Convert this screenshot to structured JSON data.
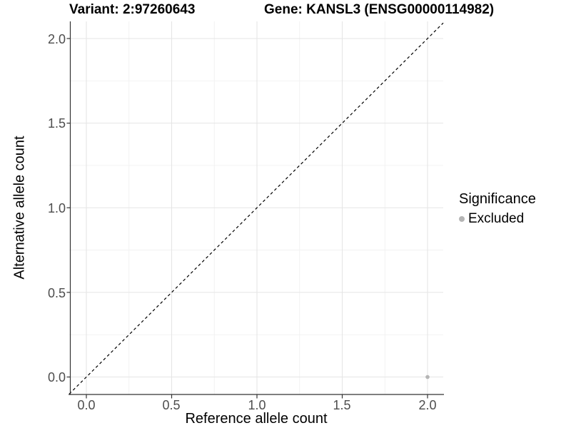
{
  "header": {
    "variant_title": "Variant: 2:97260643",
    "gene_title": "Gene: KANSL3 (ENSG00000114982)"
  },
  "chart_data": {
    "type": "scatter",
    "title": "Variant: 2:97260643  |  Gene: KANSL3 (ENSG00000114982)",
    "xlabel": "Reference allele count",
    "ylabel": "Alternative allele count",
    "xlim": [
      -0.1,
      2.1
    ],
    "ylim": [
      -0.1,
      2.1
    ],
    "x_ticks": [
      "0.0",
      "0.5",
      "1.0",
      "1.5",
      "2.0"
    ],
    "y_ticks": [
      "0.0",
      "0.5",
      "1.0",
      "1.5",
      "2.0"
    ],
    "x_tick_values": [
      0.0,
      0.5,
      1.0,
      1.5,
      2.0
    ],
    "y_tick_values": [
      0.0,
      0.5,
      1.0,
      1.5,
      2.0
    ],
    "minor_tick_values": [
      0.25,
      0.75,
      1.25,
      1.75
    ],
    "grid": "major+minor",
    "reference_line": {
      "type": "identity",
      "slope": 1,
      "intercept": 0,
      "style": "dashed",
      "color": "#000000"
    },
    "series": [
      {
        "name": "Excluded",
        "color": "#b5b5b5",
        "points": [
          {
            "x": 2.0,
            "y": 0.0
          }
        ],
        "point_radius": 2.8
      }
    ],
    "legend": {
      "position": "right",
      "title": "Significance",
      "items": [
        {
          "label": "Excluded",
          "color": "#b5b5b5"
        }
      ]
    }
  },
  "colors": {
    "background": "#ffffff",
    "grid_major": "#e5e5e5",
    "grid_minor": "#f1f1f1",
    "axis_line": "#333333",
    "tick_mark": "#333333",
    "point": "#b5b5b5",
    "reference_line": "#000000"
  }
}
